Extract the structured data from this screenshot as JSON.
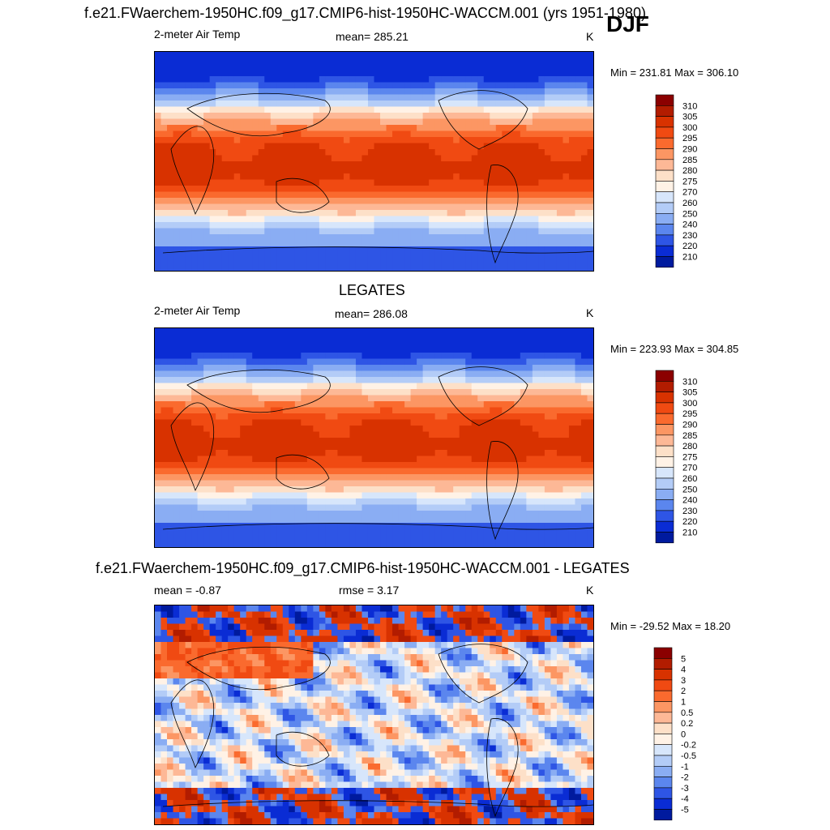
{
  "figure": {
    "season": "DJF"
  },
  "panels": [
    {
      "title": "f.e21.FWaerchem-1950HC.f09_g17.CMIP6-hist-1950HC-WACCM.001 (yrs 1951-1980)",
      "left_label": "2-meter Air Temp",
      "center_label": "mean= 285.21",
      "units": "K",
      "minmax": "Min = 231.81 Max = 306.10",
      "colorbar": {
        "labels": [
          "310",
          "305",
          "300",
          "295",
          "290",
          "285",
          "280",
          "275",
          "270",
          "260",
          "250",
          "240",
          "230",
          "220",
          "210"
        ],
        "colors": [
          "#8b0000",
          "#b21c00",
          "#d83200",
          "#f04a12",
          "#fa6a2e",
          "#fc9663",
          "#fdb896",
          "#fde0c8",
          "#fff2e6",
          "#d7e6fb",
          "#b3ccf7",
          "#8aadf3",
          "#5b86ee",
          "#2e55e5",
          "#0a2cd4",
          "#001a9e"
        ]
      }
    },
    {
      "title": "LEGATES",
      "left_label": "2-meter Air Temp",
      "center_label": "mean= 286.08",
      "units": "K",
      "minmax": "Min = 223.93 Max = 304.85",
      "colorbar": {
        "labels": [
          "310",
          "305",
          "300",
          "295",
          "290",
          "285",
          "280",
          "275",
          "270",
          "260",
          "250",
          "240",
          "230",
          "220",
          "210"
        ],
        "colors": [
          "#8b0000",
          "#b21c00",
          "#d83200",
          "#f04a12",
          "#fa6a2e",
          "#fc9663",
          "#fdb896",
          "#fde0c8",
          "#fff2e6",
          "#d7e6fb",
          "#b3ccf7",
          "#8aadf3",
          "#5b86ee",
          "#2e55e5",
          "#0a2cd4",
          "#001a9e"
        ]
      }
    },
    {
      "title": "f.e21.FWaerchem-1950HC.f09_g17.CMIP6-hist-1950HC-WACCM.001 - LEGATES",
      "left_label": "mean =  -0.87",
      "center_label": "rmse =   3.17",
      "units": "K",
      "minmax": "Min = -29.52 Max =  18.20",
      "colorbar": {
        "labels": [
          "5",
          "4",
          "3",
          "2",
          "1",
          "0.5",
          "0.2",
          "0",
          "-0.2",
          "-0.5",
          "-1",
          "-2",
          "-3",
          "-4",
          "-5"
        ],
        "colors": [
          "#8b0000",
          "#b21c00",
          "#d83200",
          "#f04a12",
          "#fa6a2e",
          "#fc9663",
          "#fdb896",
          "#fde0c8",
          "#fff2e6",
          "#d7e6fb",
          "#b3ccf7",
          "#8aadf3",
          "#5b86ee",
          "#2e55e5",
          "#0a2cd4",
          "#001a9e"
        ]
      }
    }
  ],
  "chart_data": [
    {
      "type": "heatmap",
      "title": "f.e21.FWaerchem-1950HC.f09_g17.CMIP6-hist-1950HC-WACCM.001 (yrs 1951-1980)",
      "subtitle": "2-meter Air Temp",
      "units": "K",
      "mean": 285.21,
      "min": 231.81,
      "max": 306.1,
      "contour_levels": [
        210,
        220,
        230,
        240,
        250,
        260,
        270,
        275,
        280,
        285,
        290,
        295,
        300,
        305,
        310
      ]
    },
    {
      "type": "heatmap",
      "title": "LEGATES",
      "subtitle": "2-meter Air Temp",
      "units": "K",
      "mean": 286.08,
      "min": 223.93,
      "max": 304.85,
      "contour_levels": [
        210,
        220,
        230,
        240,
        250,
        260,
        270,
        275,
        280,
        285,
        290,
        295,
        300,
        305,
        310
      ]
    },
    {
      "type": "heatmap",
      "title": "f.e21.FWaerchem-1950HC.f09_g17.CMIP6-hist-1950HC-WACCM.001 - LEGATES",
      "units": "K",
      "mean": -0.87,
      "rmse": 3.17,
      "min": -29.52,
      "max": 18.2,
      "contour_levels": [
        -5,
        -4,
        -3,
        -2,
        -1,
        -0.5,
        -0.2,
        0,
        0.2,
        0.5,
        1,
        2,
        3,
        4,
        5
      ]
    }
  ]
}
